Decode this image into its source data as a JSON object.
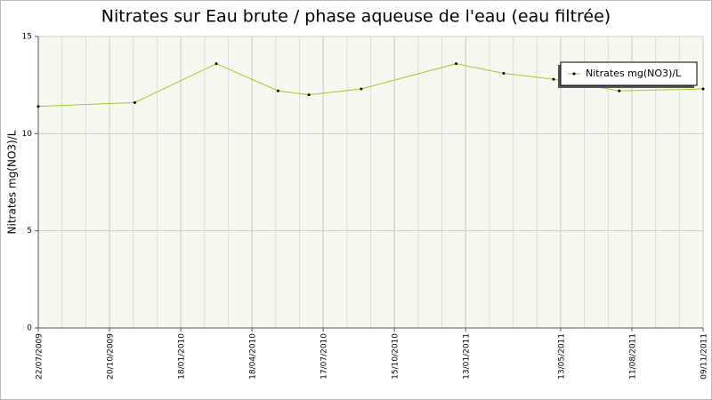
{
  "chart_data": {
    "type": "line",
    "title": "Nitrates sur Eau brute / phase aqueuse de l'eau (eau filtrée)",
    "y_label": "Nitrates mg(NO3)/L",
    "x": [
      "2009-07-22",
      "2009-11-21",
      "2010-03-04",
      "2010-05-21",
      "2010-06-29",
      "2010-09-03",
      "2011-01-01",
      "2011-03-02",
      "2011-05-04",
      "2011-07-26",
      "2011-11-09"
    ],
    "series": [
      {
        "name": "Nitrates mg(NO3)/L",
        "color": "#9acd32",
        "values": [
          11.4,
          11.6,
          13.6,
          12.2,
          12.0,
          12.3,
          13.6,
          13.1,
          12.8,
          12.2,
          12.3
        ]
      }
    ],
    "xlim": [
      "2009-07-22",
      "2011-11-09"
    ],
    "xticks": [
      {
        "value": "2009-07-22",
        "label": "22/07/2009"
      },
      {
        "value": "2009-10-20",
        "label": "20/10/2009"
      },
      {
        "value": "2010-01-18",
        "label": "18/01/2010"
      },
      {
        "value": "2010-04-18",
        "label": "18/04/2010"
      },
      {
        "value": "2010-07-17",
        "label": "17/07/2010"
      },
      {
        "value": "2010-10-15",
        "label": "15/10/2010"
      },
      {
        "value": "2011-01-13",
        "label": "13/01/2011"
      },
      {
        "value": "2011-05-13",
        "label": "13/05/2011"
      },
      {
        "value": "2011-08-11",
        "label": "11/08/2011"
      },
      {
        "value": "2011-11-09",
        "label": "09/11/2011"
      }
    ],
    "ylim": [
      0,
      15
    ],
    "yticks": [
      0,
      5,
      10,
      15
    ],
    "grid": true,
    "legend": "top-right"
  }
}
